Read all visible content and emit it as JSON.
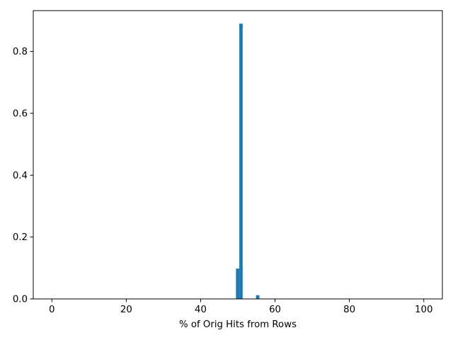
{
  "chart_data": {
    "type": "bar",
    "title": "",
    "xlabel": "% of Orig Hits from Rows",
    "ylabel": "",
    "xlim": [
      -5,
      105
    ],
    "ylim": [
      0,
      0.932
    ],
    "xticks": [
      0,
      20,
      40,
      60,
      80,
      100
    ],
    "xtick_labels": [
      "0",
      "20",
      "40",
      "60",
      "80",
      "100"
    ],
    "yticks": [
      0.0,
      0.2,
      0.4,
      0.6,
      0.8
    ],
    "ytick_labels": [
      "0.0",
      "0.2",
      "0.4",
      "0.6",
      "0.8"
    ],
    "grid": false,
    "bar_color": "#1f77b4",
    "bars": [
      {
        "x0": 49.5,
        "x1": 50.4,
        "value": 0.098
      },
      {
        "x0": 50.4,
        "x1": 51.3,
        "value": 0.89
      },
      {
        "x0": 54.9,
        "x1": 55.8,
        "value": 0.012
      }
    ]
  }
}
